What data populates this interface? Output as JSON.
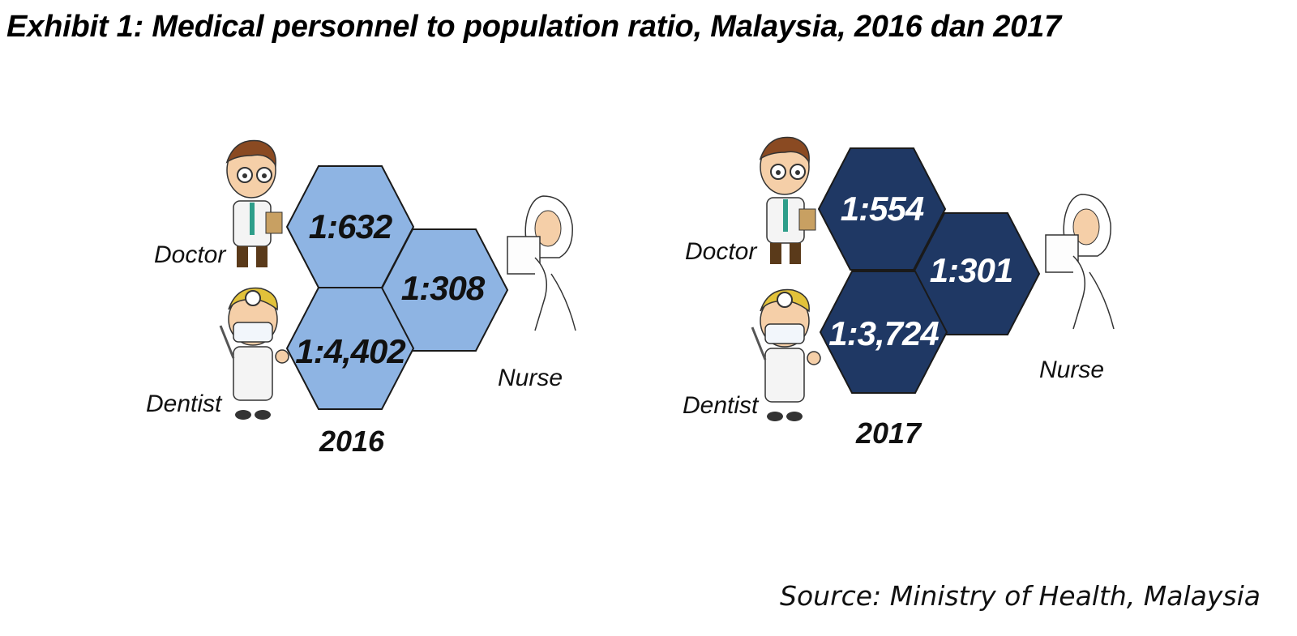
{
  "title": "Exhibit 1: Medical personnel to population ratio, Malaysia, 2016 dan 2017",
  "source": "Source: Ministry of Health, Malaysia",
  "roles": {
    "doctor": "Doctor",
    "dentist": "Dentist",
    "nurse": "Nurse"
  },
  "panels": [
    {
      "year": "2016",
      "fill_color": "#8eb4e3",
      "text_color": "#111111",
      "ratios": {
        "doctor": "1:632",
        "nurse": "1:308",
        "dentist": "1:4,402"
      }
    },
    {
      "year": "2017",
      "fill_color": "#1f3864",
      "text_color": "#ffffff",
      "ratios": {
        "doctor": "1:554",
        "nurse": "1:301",
        "dentist": "1:3,724"
      }
    }
  ],
  "icons": {
    "doctor": "doctor-icon",
    "dentist": "dentist-icon",
    "nurse": "nurse-icon"
  }
}
